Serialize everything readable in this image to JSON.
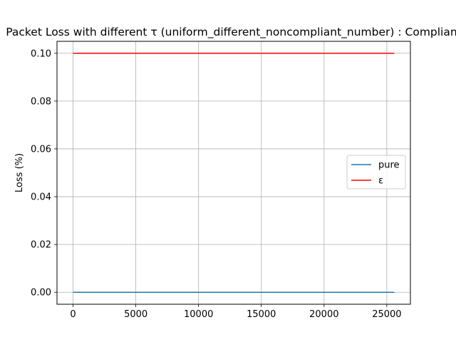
{
  "chart_data": {
    "type": "line",
    "title": "Packet Loss with different τ (uniform_different_noncompliant_number) : Compliant",
    "xlabel": "",
    "ylabel": "Loss (%)",
    "xlim": [
      -1280,
      26880
    ],
    "ylim": [
      -0.005,
      0.105
    ],
    "x_ticks": [
      0,
      5000,
      10000,
      15000,
      20000,
      25000
    ],
    "x_tick_labels": [
      "0",
      "5000",
      "10000",
      "15000",
      "20000",
      "25000"
    ],
    "y_ticks": [
      0.0,
      0.02,
      0.04,
      0.06,
      0.08,
      0.1
    ],
    "y_tick_labels": [
      "0.00",
      "0.02",
      "0.04",
      "0.06",
      "0.08",
      "0.10"
    ],
    "grid": true,
    "legend_position": "center-right",
    "series": [
      {
        "name": "pure",
        "color": "#1f77b4",
        "x": [
          0,
          25600
        ],
        "y": [
          0.0,
          0.0
        ]
      },
      {
        "name": "ε",
        "color": "#ff0000",
        "x": [
          0,
          25600
        ],
        "y": [
          0.1,
          0.1
        ]
      }
    ]
  }
}
